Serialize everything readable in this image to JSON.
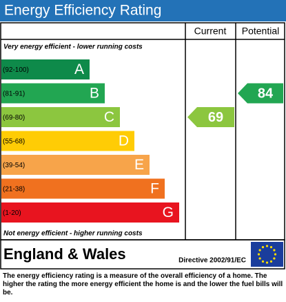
{
  "title": "Energy Efficiency Rating",
  "headers": {
    "current": "Current",
    "potential": "Potential"
  },
  "top_note": "Very energy efficient - lower running costs",
  "bottom_note": "Not energy efficient - higher running costs",
  "bands": [
    {
      "range": "(92-100)",
      "letter": "A",
      "color": "#0e8a4a"
    },
    {
      "range": "(81-91)",
      "letter": "B",
      "color": "#22a652"
    },
    {
      "range": "(69-80)",
      "letter": "C",
      "color": "#8cc63f"
    },
    {
      "range": "(55-68)",
      "letter": "D",
      "color": "#ffcc05"
    },
    {
      "range": "(39-54)",
      "letter": "E",
      "color": "#f7a44a"
    },
    {
      "range": "(21-38)",
      "letter": "F",
      "color": "#f0711f"
    },
    {
      "range": "(1-20)",
      "letter": "G",
      "color": "#e8141f"
    }
  ],
  "current": 69,
  "potential": 84,
  "region": "England & Wales",
  "directive": "Directive 2002/91/EC",
  "footer": "The energy efficiency rating is a measure of the overall efficiency of a home. The higher the rating the more energy efficient the home is and the lower the fuel bills will be."
}
